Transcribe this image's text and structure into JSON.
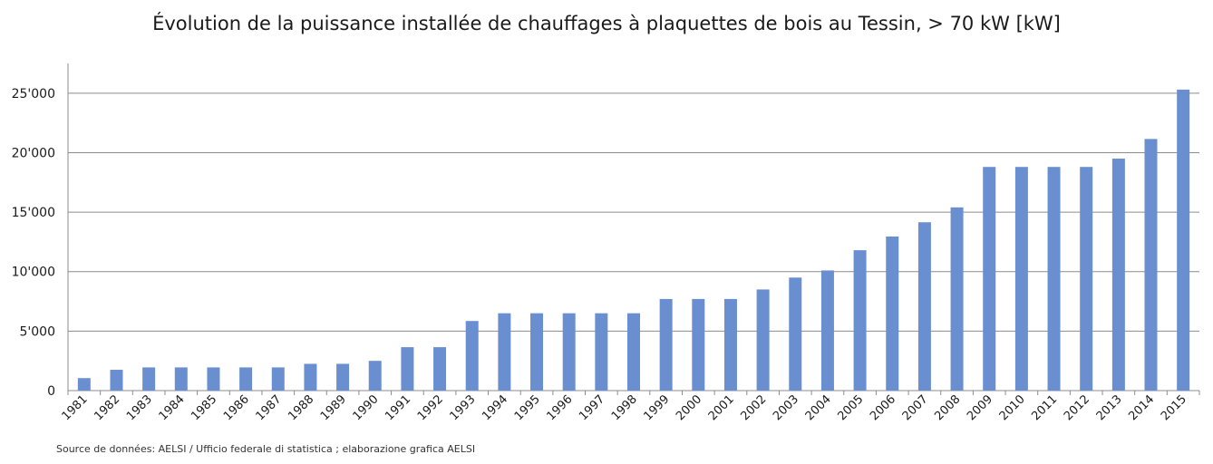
{
  "chart_data": {
    "type": "bar",
    "title": "Évolution de la puissance installée de chauffages à plaquettes de bois au Tessin, > 70 kW [kW]",
    "source": "Source de données: AELSI / Ufficio federale di statistica ; elaborazione grafica AELSI",
    "categories": [
      "1981",
      "1982",
      "1983",
      "1984",
      "1985",
      "1986",
      "1987",
      "1988",
      "1989",
      "1990",
      "1991",
      "1992",
      "1993",
      "1994",
      "1995",
      "1996",
      "1997",
      "1998",
      "1999",
      "2000",
      "2001",
      "2002",
      "2003",
      "2004",
      "2005",
      "2006",
      "2007",
      "2008",
      "2009",
      "2010",
      "2011",
      "2012",
      "2013",
      "2014",
      "2015"
    ],
    "values": [
      1050,
      1750,
      1950,
      1950,
      1950,
      1950,
      1950,
      2250,
      2250,
      2500,
      3650,
      3650,
      5850,
      6500,
      6500,
      6500,
      6500,
      6500,
      7700,
      7700,
      7700,
      8500,
      9500,
      10100,
      11800,
      12950,
      14150,
      15400,
      18800,
      18800,
      18800,
      18800,
      19500,
      21150,
      25300
    ],
    "yticks": [
      0,
      5000,
      10000,
      15000,
      20000,
      25000
    ],
    "ytick_labels": [
      "0",
      "5'000",
      "10'000",
      "15'000",
      "20'000",
      "25'000"
    ],
    "ylim": [
      0,
      27500
    ],
    "grid": true,
    "bar_color": "#6a8fd0",
    "xlabel": "",
    "ylabel": ""
  }
}
